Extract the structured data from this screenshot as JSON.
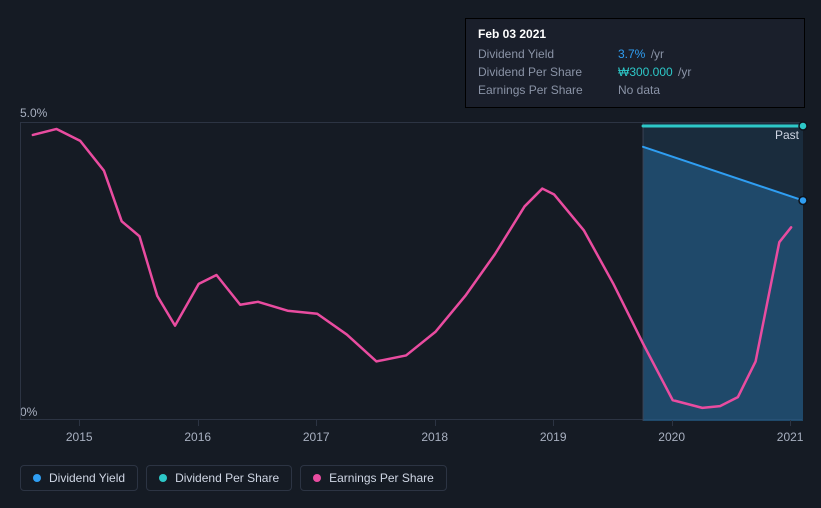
{
  "tooltip": {
    "title": "Feb 03 2021",
    "rows": [
      {
        "label": "Dividend Yield",
        "value": "3.7%",
        "unit": "/yr",
        "value_color": "blue"
      },
      {
        "label": "Dividend Per Share",
        "value": "₩300.000",
        "unit": "/yr",
        "value_color": "teal"
      },
      {
        "label": "Earnings Per Share",
        "value": "No data",
        "unit": "",
        "value_color": "grey"
      }
    ]
  },
  "chart": {
    "type": "line",
    "background_color": "#151b24",
    "grid_color": "#2c3443",
    "y_axis": {
      "min": 0,
      "max": 5.0,
      "labels": [
        "5.0%",
        "0%"
      ]
    },
    "x_axis": {
      "min": 2014.5,
      "max": 2021.1,
      "ticks": [
        2015,
        2016,
        2017,
        2018,
        2019,
        2020,
        2021
      ]
    },
    "past_label": "Past",
    "shaded_region": {
      "x_start": 2019.75,
      "x_end": 2021.1,
      "color": "#1f3a52",
      "opacity": 0.55
    },
    "series": {
      "dividend_yield": {
        "label": "Dividend Yield",
        "color": "#2f9ef2",
        "line_width": 2,
        "marker_end": true,
        "points": [
          [
            2019.75,
            4.6
          ],
          [
            2021.1,
            3.7
          ]
        ]
      },
      "dividend_per_share": {
        "label": "Dividend Per Share",
        "color": "#2dc8c8",
        "line_width": 3,
        "marker_end": true,
        "points": [
          [
            2019.75,
            4.95
          ],
          [
            2021.1,
            4.95
          ]
        ]
      },
      "earnings_per_share": {
        "label": "Earnings Per Share",
        "color": "#e94ca0",
        "line_width": 2.5,
        "points": [
          [
            2014.6,
            4.8
          ],
          [
            2014.8,
            4.9
          ],
          [
            2015.0,
            4.7
          ],
          [
            2015.2,
            4.2
          ],
          [
            2015.35,
            3.35
          ],
          [
            2015.5,
            3.1
          ],
          [
            2015.65,
            2.1
          ],
          [
            2015.8,
            1.6
          ],
          [
            2016.0,
            2.3
          ],
          [
            2016.15,
            2.45
          ],
          [
            2016.35,
            1.95
          ],
          [
            2016.5,
            2.0
          ],
          [
            2016.75,
            1.85
          ],
          [
            2017.0,
            1.8
          ],
          [
            2017.25,
            1.45
          ],
          [
            2017.5,
            1.0
          ],
          [
            2017.75,
            1.1
          ],
          [
            2018.0,
            1.5
          ],
          [
            2018.25,
            2.1
          ],
          [
            2018.5,
            2.8
          ],
          [
            2018.75,
            3.6
          ],
          [
            2018.9,
            3.9
          ],
          [
            2019.0,
            3.8
          ],
          [
            2019.25,
            3.2
          ],
          [
            2019.5,
            2.3
          ],
          [
            2019.75,
            1.3
          ],
          [
            2020.0,
            0.35
          ],
          [
            2020.25,
            0.22
          ],
          [
            2020.4,
            0.25
          ],
          [
            2020.55,
            0.4
          ],
          [
            2020.7,
            1.0
          ],
          [
            2020.8,
            2.0
          ],
          [
            2020.9,
            3.0
          ],
          [
            2021.0,
            3.25
          ]
        ]
      }
    },
    "legend": [
      {
        "label": "Dividend Yield",
        "color": "#2f9ef2"
      },
      {
        "label": "Dividend Per Share",
        "color": "#2dc8c8"
      },
      {
        "label": "Earnings Per Share",
        "color": "#e94ca0"
      }
    ]
  }
}
